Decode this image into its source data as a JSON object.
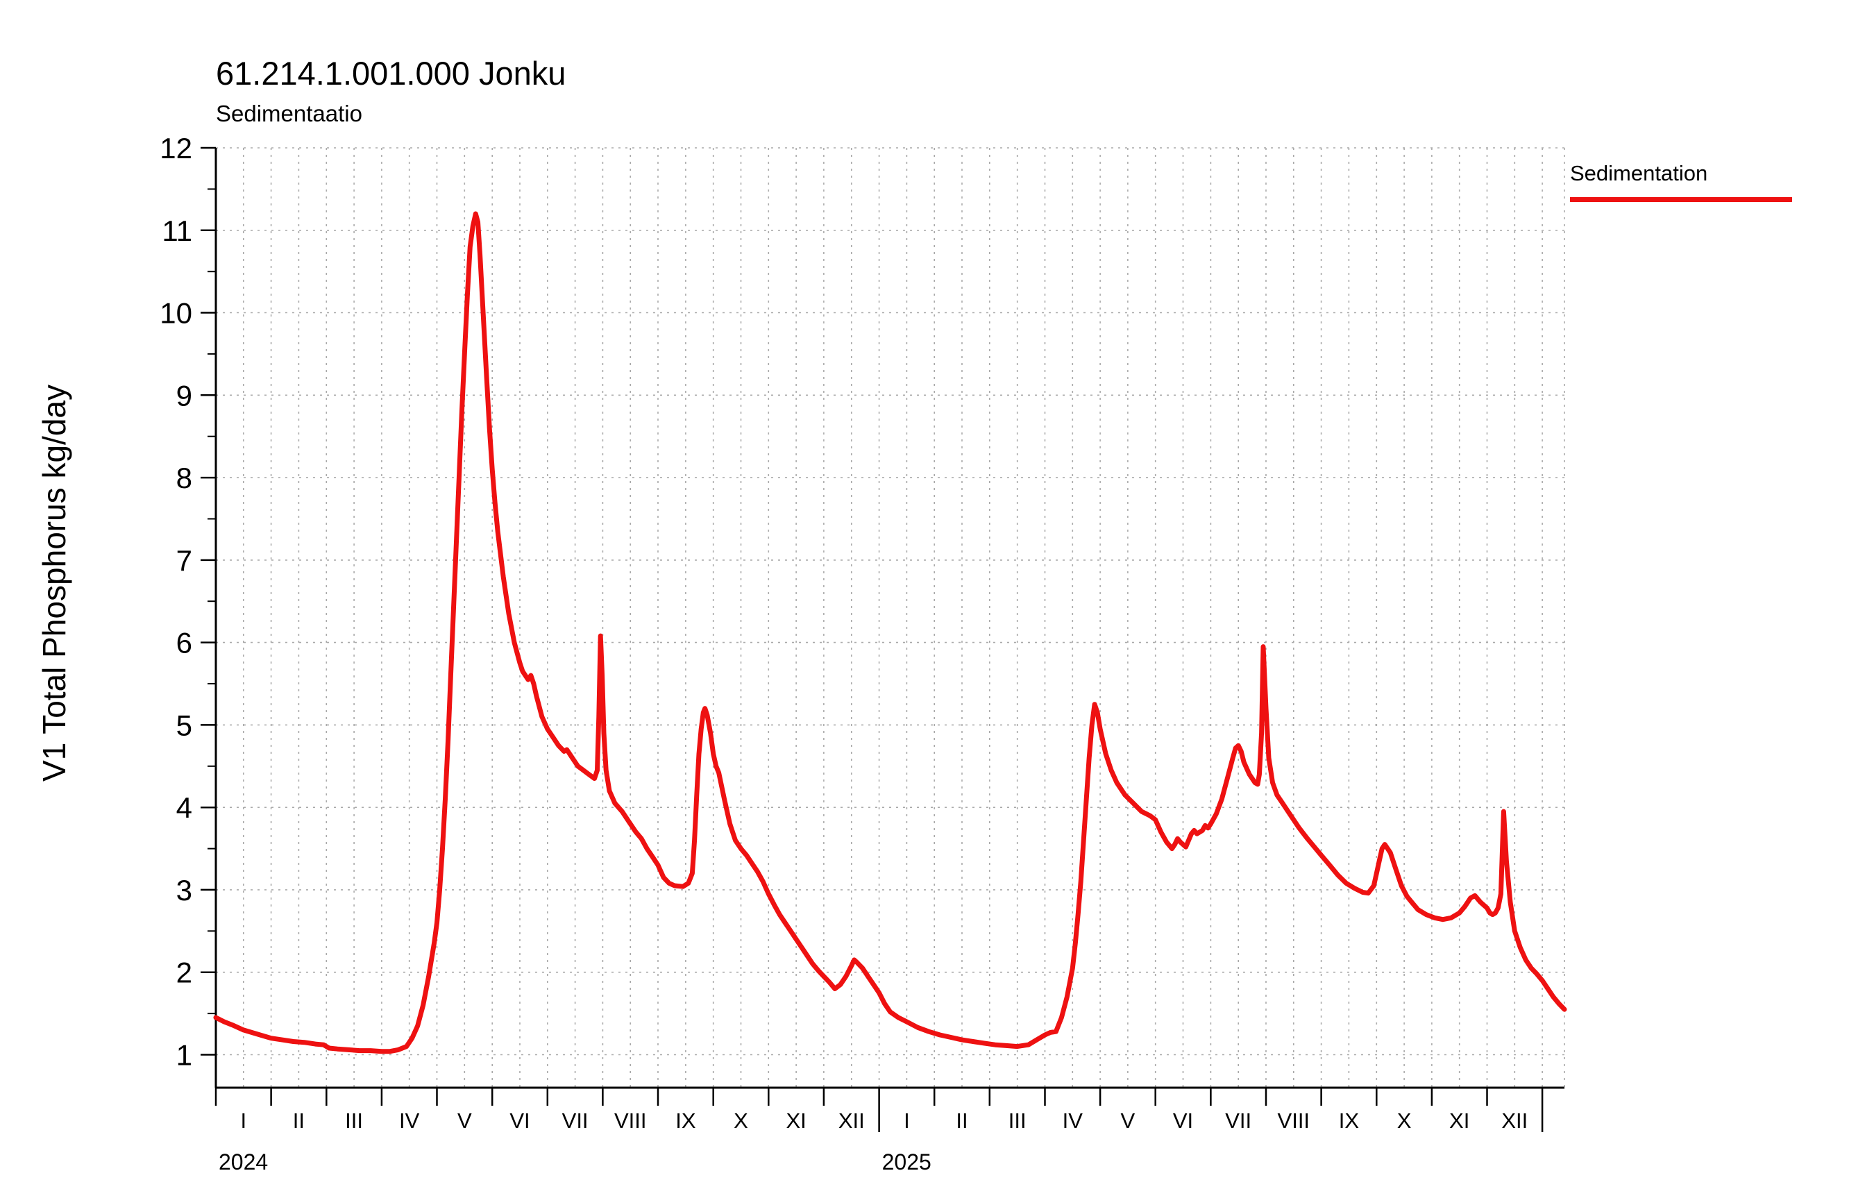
{
  "chart_data": {
    "type": "line",
    "title": "61.214.1.001.000 Jonku",
    "subtitle": "Sedimentaatio",
    "ylabel": "V1 Total Phosphorus kg/day",
    "xlabel": "",
    "x_unit": "months since 2024-01-01",
    "xlim": [
      0,
      24.4
    ],
    "ylim": [
      0.6,
      12
    ],
    "y_ticks": [
      1,
      2,
      3,
      4,
      5,
      6,
      7,
      8,
      9,
      10,
      11,
      12
    ],
    "x_month_labels": [
      "I",
      "II",
      "III",
      "IV",
      "V",
      "VI",
      "VII",
      "VIII",
      "IX",
      "X",
      "XI",
      "XII"
    ],
    "year_labels": [
      "2024",
      "2025"
    ],
    "grid": true,
    "grid_color": "#aaaaaa",
    "axis_color": "#000000",
    "legend_position": "top-right",
    "legend": {
      "label": "Sedimentation",
      "color": "#ee1111"
    },
    "series": [
      {
        "name": "Sedimentation",
        "color": "#ee1111",
        "points": [
          [
            0,
            1.45
          ],
          [
            0.15,
            1.4
          ],
          [
            0.3,
            1.36
          ],
          [
            0.5,
            1.3
          ],
          [
            0.7,
            1.26
          ],
          [
            0.9,
            1.22
          ],
          [
            1,
            1.2
          ],
          [
            1.2,
            1.18
          ],
          [
            1.4,
            1.16
          ],
          [
            1.6,
            1.15
          ],
          [
            1.8,
            1.13
          ],
          [
            1.95,
            1.12
          ],
          [
            2.05,
            1.08
          ],
          [
            2.2,
            1.07
          ],
          [
            2.4,
            1.06
          ],
          [
            2.6,
            1.05
          ],
          [
            2.8,
            1.05
          ],
          [
            3,
            1.04
          ],
          [
            3.15,
            1.04
          ],
          [
            3.3,
            1.06
          ],
          [
            3.45,
            1.1
          ],
          [
            3.55,
            1.2
          ],
          [
            3.65,
            1.35
          ],
          [
            3.75,
            1.6
          ],
          [
            3.85,
            1.95
          ],
          [
            3.95,
            2.35
          ],
          [
            4,
            2.6
          ],
          [
            4.05,
            3
          ],
          [
            4.1,
            3.5
          ],
          [
            4.15,
            4.1
          ],
          [
            4.2,
            4.8
          ],
          [
            4.25,
            5.6
          ],
          [
            4.3,
            6.4
          ],
          [
            4.35,
            7.2
          ],
          [
            4.4,
            8
          ],
          [
            4.45,
            8.8
          ],
          [
            4.5,
            9.5
          ],
          [
            4.55,
            10.2
          ],
          [
            4.6,
            10.8
          ],
          [
            4.65,
            11.05
          ],
          [
            4.7,
            11.2
          ],
          [
            4.74,
            11.1
          ],
          [
            4.78,
            10.7
          ],
          [
            4.82,
            10.2
          ],
          [
            4.86,
            9.7
          ],
          [
            4.9,
            9.2
          ],
          [
            4.95,
            8.6
          ],
          [
            5,
            8.1
          ],
          [
            5.05,
            7.7
          ],
          [
            5.1,
            7.35
          ],
          [
            5.2,
            6.8
          ],
          [
            5.3,
            6.35
          ],
          [
            5.4,
            6
          ],
          [
            5.5,
            5.75
          ],
          [
            5.55,
            5.65
          ],
          [
            5.6,
            5.6
          ],
          [
            5.65,
            5.55
          ],
          [
            5.7,
            5.6
          ],
          [
            5.75,
            5.5
          ],
          [
            5.8,
            5.35
          ],
          [
            5.9,
            5.1
          ],
          [
            6,
            4.95
          ],
          [
            6.1,
            4.85
          ],
          [
            6.2,
            4.75
          ],
          [
            6.3,
            4.68
          ],
          [
            6.35,
            4.7
          ],
          [
            6.45,
            4.6
          ],
          [
            6.55,
            4.5
          ],
          [
            6.65,
            4.45
          ],
          [
            6.75,
            4.4
          ],
          [
            6.85,
            4.35
          ],
          [
            6.9,
            4.45
          ],
          [
            6.93,
            5.1
          ],
          [
            6.96,
            6.08
          ],
          [
            6.99,
            5.6
          ],
          [
            7.02,
            4.9
          ],
          [
            7.06,
            4.45
          ],
          [
            7.12,
            4.2
          ],
          [
            7.22,
            4.05
          ],
          [
            7.35,
            3.95
          ],
          [
            7.5,
            3.8
          ],
          [
            7.6,
            3.7
          ],
          [
            7.7,
            3.62
          ],
          [
            7.8,
            3.5
          ],
          [
            7.9,
            3.4
          ],
          [
            8,
            3.3
          ],
          [
            8.1,
            3.15
          ],
          [
            8.2,
            3.08
          ],
          [
            8.3,
            3.05
          ],
          [
            8.45,
            3.04
          ],
          [
            8.55,
            3.08
          ],
          [
            8.62,
            3.2
          ],
          [
            8.66,
            3.6
          ],
          [
            8.7,
            4.15
          ],
          [
            8.74,
            4.65
          ],
          [
            8.78,
            4.95
          ],
          [
            8.82,
            5.15
          ],
          [
            8.85,
            5.2
          ],
          [
            8.89,
            5.12
          ],
          [
            8.95,
            4.9
          ],
          [
            9,
            4.65
          ],
          [
            9.05,
            4.5
          ],
          [
            9.1,
            4.42
          ],
          [
            9.2,
            4.1
          ],
          [
            9.3,
            3.8
          ],
          [
            9.4,
            3.6
          ],
          [
            9.5,
            3.5
          ],
          [
            9.6,
            3.42
          ],
          [
            9.7,
            3.32
          ],
          [
            9.8,
            3.22
          ],
          [
            9.9,
            3.1
          ],
          [
            10,
            2.95
          ],
          [
            10.1,
            2.82
          ],
          [
            10.2,
            2.7
          ],
          [
            10.3,
            2.6
          ],
          [
            10.4,
            2.5
          ],
          [
            10.5,
            2.4
          ],
          [
            10.6,
            2.3
          ],
          [
            10.7,
            2.2
          ],
          [
            10.8,
            2.1
          ],
          [
            10.9,
            2.02
          ],
          [
            11,
            1.95
          ],
          [
            11.1,
            1.88
          ],
          [
            11.2,
            1.8
          ],
          [
            11.3,
            1.85
          ],
          [
            11.4,
            1.95
          ],
          [
            11.5,
            2.08
          ],
          [
            11.55,
            2.15
          ],
          [
            11.6,
            2.12
          ],
          [
            11.7,
            2.05
          ],
          [
            11.8,
            1.95
          ],
          [
            11.9,
            1.85
          ],
          [
            12,
            1.75
          ],
          [
            12.1,
            1.62
          ],
          [
            12.2,
            1.52
          ],
          [
            12.35,
            1.45
          ],
          [
            12.5,
            1.4
          ],
          [
            12.7,
            1.33
          ],
          [
            12.9,
            1.28
          ],
          [
            13.1,
            1.24
          ],
          [
            13.3,
            1.21
          ],
          [
            13.5,
            1.18
          ],
          [
            13.7,
            1.16
          ],
          [
            13.9,
            1.14
          ],
          [
            14.1,
            1.12
          ],
          [
            14.3,
            1.11
          ],
          [
            14.5,
            1.1
          ],
          [
            14.7,
            1.12
          ],
          [
            14.85,
            1.18
          ],
          [
            15,
            1.24
          ],
          [
            15.1,
            1.27
          ],
          [
            15.2,
            1.28
          ],
          [
            15.3,
            1.45
          ],
          [
            15.4,
            1.7
          ],
          [
            15.5,
            2.05
          ],
          [
            15.55,
            2.35
          ],
          [
            15.6,
            2.7
          ],
          [
            15.65,
            3.1
          ],
          [
            15.7,
            3.6
          ],
          [
            15.75,
            4.1
          ],
          [
            15.8,
            4.6
          ],
          [
            15.85,
            5
          ],
          [
            15.9,
            5.25
          ],
          [
            15.95,
            5.15
          ],
          [
            16,
            4.95
          ],
          [
            16.05,
            4.8
          ],
          [
            16.1,
            4.65
          ],
          [
            16.2,
            4.45
          ],
          [
            16.3,
            4.3
          ],
          [
            16.45,
            4.15
          ],
          [
            16.6,
            4.05
          ],
          [
            16.75,
            3.95
          ],
          [
            16.9,
            3.9
          ],
          [
            17,
            3.85
          ],
          [
            17.1,
            3.7
          ],
          [
            17.2,
            3.58
          ],
          [
            17.3,
            3.5
          ],
          [
            17.35,
            3.55
          ],
          [
            17.4,
            3.62
          ],
          [
            17.45,
            3.58
          ],
          [
            17.55,
            3.52
          ],
          [
            17.6,
            3.6
          ],
          [
            17.65,
            3.68
          ],
          [
            17.7,
            3.72
          ],
          [
            17.75,
            3.68
          ],
          [
            17.85,
            3.72
          ],
          [
            17.9,
            3.78
          ],
          [
            17.95,
            3.75
          ],
          [
            18,
            3.8
          ],
          [
            18.1,
            3.92
          ],
          [
            18.2,
            4.1
          ],
          [
            18.3,
            4.35
          ],
          [
            18.4,
            4.6
          ],
          [
            18.45,
            4.72
          ],
          [
            18.5,
            4.75
          ],
          [
            18.55,
            4.68
          ],
          [
            18.6,
            4.55
          ],
          [
            18.7,
            4.4
          ],
          [
            18.8,
            4.3
          ],
          [
            18.85,
            4.28
          ],
          [
            18.88,
            4.4
          ],
          [
            18.92,
            4.9
          ],
          [
            18.95,
            5.95
          ],
          [
            19,
            5.2
          ],
          [
            19.05,
            4.6
          ],
          [
            19.12,
            4.3
          ],
          [
            19.2,
            4.15
          ],
          [
            19.3,
            4.05
          ],
          [
            19.45,
            3.9
          ],
          [
            19.6,
            3.75
          ],
          [
            19.75,
            3.62
          ],
          [
            19.9,
            3.5
          ],
          [
            20,
            3.42
          ],
          [
            20.15,
            3.3
          ],
          [
            20.3,
            3.18
          ],
          [
            20.45,
            3.08
          ],
          [
            20.6,
            3.02
          ],
          [
            20.75,
            2.97
          ],
          [
            20.85,
            2.96
          ],
          [
            20.95,
            3.05
          ],
          [
            21,
            3.2
          ],
          [
            21.05,
            3.35
          ],
          [
            21.1,
            3.5
          ],
          [
            21.15,
            3.55
          ],
          [
            21.25,
            3.45
          ],
          [
            21.35,
            3.25
          ],
          [
            21.45,
            3.05
          ],
          [
            21.55,
            2.92
          ],
          [
            21.65,
            2.84
          ],
          [
            21.75,
            2.76
          ],
          [
            21.9,
            2.7
          ],
          [
            22.05,
            2.66
          ],
          [
            22.2,
            2.64
          ],
          [
            22.35,
            2.66
          ],
          [
            22.5,
            2.72
          ],
          [
            22.6,
            2.8
          ],
          [
            22.7,
            2.9
          ],
          [
            22.78,
            2.93
          ],
          [
            22.88,
            2.85
          ],
          [
            23,
            2.78
          ],
          [
            23.05,
            2.72
          ],
          [
            23.1,
            2.7
          ],
          [
            23.15,
            2.72
          ],
          [
            23.2,
            2.78
          ],
          [
            23.25,
            2.95
          ],
          [
            23.3,
            3.95
          ],
          [
            23.35,
            3.35
          ],
          [
            23.42,
            2.85
          ],
          [
            23.5,
            2.5
          ],
          [
            23.6,
            2.3
          ],
          [
            23.7,
            2.15
          ],
          [
            23.8,
            2.05
          ],
          [
            23.9,
            1.98
          ],
          [
            24,
            1.9
          ],
          [
            24.1,
            1.8
          ],
          [
            24.2,
            1.7
          ],
          [
            24.3,
            1.62
          ],
          [
            24.4,
            1.55
          ]
        ]
      }
    ]
  }
}
